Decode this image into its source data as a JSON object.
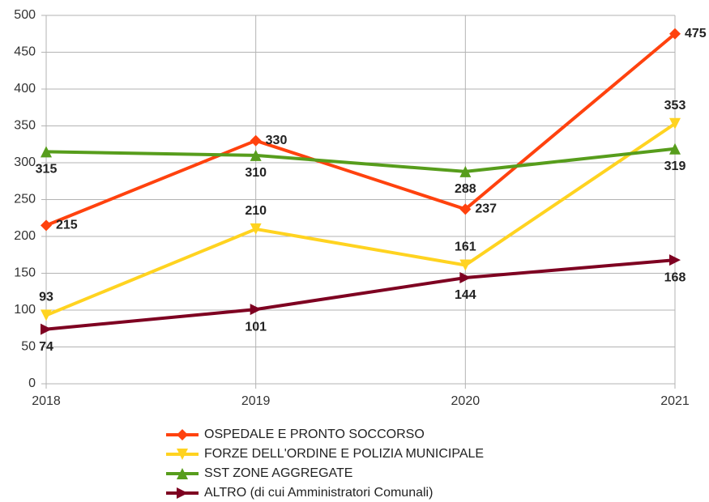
{
  "chart_data": {
    "type": "line",
    "categories": [
      "2018",
      "2019",
      "2020",
      "2021"
    ],
    "series": [
      {
        "name": "OSPEDALE E PRONTO SOCCORSO",
        "color": "#ff420e",
        "marker": "diamond",
        "values": [
          215,
          330,
          237,
          475
        ]
      },
      {
        "name": "FORZE DELL'ORDINE E POLIZIA MUNICIPALE",
        "color": "#ffd320",
        "marker": "triangle-down",
        "values": [
          93,
          210,
          161,
          353
        ]
      },
      {
        "name": "SST ZONE AGGREGATE",
        "color": "#579d1c",
        "marker": "triangle-up",
        "values": [
          315,
          310,
          288,
          319
        ]
      },
      {
        "name": "ALTRO (di cui  Amministratori Comunali)",
        "color": "#7e0021",
        "marker": "arrow-right",
        "values": [
          74,
          101,
          144,
          168
        ]
      }
    ],
    "ylim": [
      0,
      500
    ],
    "yticks": [
      0,
      50,
      100,
      150,
      200,
      250,
      300,
      350,
      400,
      450,
      500
    ],
    "grid": true
  }
}
